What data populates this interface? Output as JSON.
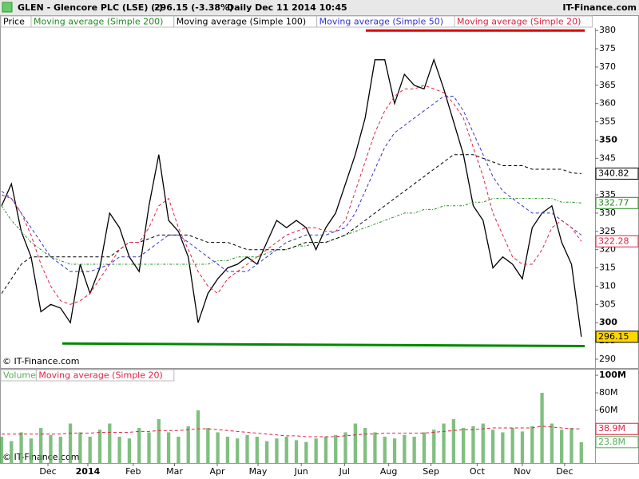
{
  "header": {
    "title": "GLEN - Glencore PLC (LSE) (-)",
    "change": "296.15 (-3.38%)",
    "period": "Daily  Dec 11 2014 10:45",
    "site": "IT-Finance.com"
  },
  "chart_data": [
    {
      "type": "line",
      "copyright": "© IT-Finance.com",
      "x": [
        0,
        1,
        2,
        3,
        4,
        5,
        6,
        7,
        8,
        9,
        10,
        11,
        12,
        13,
        14,
        15,
        16,
        17,
        18,
        19,
        20,
        21,
        22,
        23,
        24,
        25,
        26,
        27,
        28,
        29,
        30,
        31,
        32,
        33,
        34,
        35,
        36,
        37,
        38,
        39,
        40,
        41,
        42,
        43,
        44,
        45,
        46,
        47,
        48,
        49,
        50,
        51,
        52,
        53,
        54,
        55,
        56,
        57,
        58,
        59
      ],
      "xlim": [
        -0.16,
        60.4
      ],
      "ylim": [
        287.8,
        380.7
      ],
      "yticks": [
        290,
        295,
        300,
        305,
        310,
        315,
        320,
        325,
        330,
        335,
        340,
        345,
        350,
        355,
        360,
        365,
        370,
        375,
        380
      ],
      "series": [
        {
          "name": "Price",
          "color": "#000000",
          "dash": "none",
          "values": [
            332,
            338,
            325,
            318,
            303,
            305,
            304,
            300,
            316,
            308,
            315,
            330,
            326,
            318,
            314,
            332,
            346,
            328,
            325,
            318,
            300,
            308,
            312,
            315,
            316,
            318,
            316,
            322,
            328,
            326,
            328,
            326,
            320,
            326,
            330,
            338,
            346,
            356,
            372,
            372,
            360,
            368,
            365,
            364,
            372,
            364,
            355,
            346,
            332,
            328,
            315,
            318,
            316,
            312,
            326,
            330,
            332,
            322,
            316,
            296.15
          ]
        },
        {
          "name": "Moving average (Simple 200)",
          "color": "#228b22",
          "dash": "3 2 1 2",
          "values": [
            332,
            328,
            325,
            322,
            320,
            318,
            317,
            316,
            316,
            316,
            316,
            316,
            316,
            316,
            316,
            316,
            316,
            316,
            316,
            316,
            316,
            316,
            317,
            317,
            318,
            318,
            318,
            319,
            320,
            320,
            321,
            321,
            322,
            322,
            323,
            324,
            325,
            326,
            327,
            328,
            329,
            330,
            330,
            331,
            331,
            332,
            332,
            332,
            333,
            333,
            334,
            334,
            334,
            334,
            334,
            334,
            334,
            333,
            333,
            332.77
          ]
        },
        {
          "name": "Moving average (Simple 100)",
          "color": "#000000",
          "dash": "4 3",
          "values": [
            308,
            312,
            316,
            318,
            318,
            318,
            318,
            318,
            318,
            318,
            318,
            318,
            320,
            322,
            322,
            323,
            324,
            324,
            324,
            324,
            323,
            322,
            322,
            322,
            321,
            320,
            320,
            320,
            320,
            320,
            321,
            322,
            322,
            322,
            323,
            324,
            326,
            328,
            330,
            332,
            334,
            336,
            338,
            340,
            342,
            344,
            346,
            346,
            346,
            345,
            344,
            343,
            343,
            343,
            342,
            342,
            342,
            342,
            341,
            340.82
          ]
        },
        {
          "name": "Moving average (Simple 50)",
          "color": "#3333cc",
          "dash": "4 3",
          "values": [
            336,
            334,
            330,
            326,
            322,
            318,
            316,
            314,
            314,
            314,
            315,
            316,
            318,
            318,
            318,
            320,
            322,
            324,
            324,
            322,
            320,
            318,
            316,
            314,
            314,
            314,
            316,
            318,
            320,
            322,
            323,
            324,
            324,
            324,
            325,
            326,
            330,
            336,
            342,
            348,
            352,
            354,
            356,
            358,
            360,
            362,
            362,
            358,
            352,
            346,
            340,
            336,
            334,
            332,
            330,
            330,
            330,
            328,
            326,
            324
          ]
        },
        {
          "name": "Moving average (Simple 20)",
          "color": "#dd2244",
          "dash": "4 3",
          "values": [
            335,
            334,
            330,
            324,
            316,
            310,
            306,
            305,
            306,
            308,
            312,
            316,
            320,
            322,
            322,
            326,
            332,
            334,
            326,
            320,
            314,
            310,
            308,
            312,
            314,
            316,
            318,
            320,
            322,
            324,
            325,
            326,
            326,
            325,
            325,
            328,
            336,
            344,
            352,
            358,
            362,
            364,
            364,
            365,
            364,
            363,
            360,
            356,
            348,
            340,
            330,
            324,
            318,
            316,
            316,
            320,
            326,
            328,
            326,
            322.28
          ]
        }
      ],
      "lines": [
        {
          "color": "#dd0000",
          "from": [
            37.07,
            380
          ],
          "to": [
            59.35,
            380
          ]
        },
        {
          "color": "#008800",
          "from": [
            6.18,
            294.3
          ],
          "to": [
            59.35,
            293.6
          ]
        }
      ]
    },
    {
      "type": "bar",
      "copyright": "© IT-Finance.com",
      "x": [
        0,
        1,
        2,
        3,
        4,
        5,
        6,
        7,
        8,
        9,
        10,
        11,
        12,
        13,
        14,
        15,
        16,
        17,
        18,
        19,
        20,
        21,
        22,
        23,
        24,
        25,
        26,
        27,
        28,
        29,
        30,
        31,
        32,
        33,
        34,
        35,
        36,
        37,
        38,
        39,
        40,
        41,
        42,
        43,
        44,
        45,
        46,
        47,
        48,
        49,
        50,
        51,
        52,
        53,
        54,
        55,
        56,
        57,
        58,
        59
      ],
      "xlim": [
        -0.16,
        60.4
      ],
      "xticks": [
        {
          "value": 4.72,
          "label": "Dec"
        },
        {
          "value": 8.78,
          "label": "2014"
        },
        {
          "value": 13.4,
          "label": "Feb"
        },
        {
          "value": 17.6,
          "label": "Mar"
        },
        {
          "value": 21.95,
          "label": "Apr"
        },
        {
          "value": 26.1,
          "label": "May"
        },
        {
          "value": 30.5,
          "label": "Jun"
        },
        {
          "value": 34.9,
          "label": "Jul"
        },
        {
          "value": 39.4,
          "label": "Aug"
        },
        {
          "value": 43.7,
          "label": "Sep"
        },
        {
          "value": 48.4,
          "label": "Oct"
        },
        {
          "value": 53.0,
          "label": "Nov"
        },
        {
          "value": 57.3,
          "label": "Dec"
        }
      ],
      "ylim": [
        0,
        104.6
      ],
      "yticks": [
        {
          "value": 60,
          "label": "60M"
        },
        {
          "value": 80,
          "label": "80M"
        },
        {
          "value": 100,
          "label": "100M"
        }
      ],
      "series": [
        {
          "name": "Volume",
          "color": "#55aa55",
          "values": [
            30,
            25,
            35,
            28,
            40,
            32,
            30,
            45,
            35,
            30,
            38,
            45,
            30,
            28,
            40,
            35,
            50,
            35,
            30,
            42,
            60,
            40,
            35,
            30,
            28,
            32,
            30,
            25,
            28,
            30,
            26,
            24,
            28,
            30,
            32,
            35,
            45,
            40,
            35,
            30,
            28,
            32,
            30,
            35,
            38,
            45,
            50,
            40,
            42,
            45,
            38,
            35,
            40,
            36,
            42,
            80,
            45,
            38,
            40,
            23.8
          ],
          "value_labels": [
            null,
            null,
            null,
            null,
            null,
            null,
            null,
            null,
            null,
            null,
            null,
            null,
            null,
            null,
            null,
            null,
            null,
            null,
            null,
            null,
            null,
            null,
            null,
            null,
            null,
            null,
            null,
            null,
            null,
            null,
            null,
            null,
            null,
            null,
            null,
            null,
            null,
            null,
            null,
            null,
            null,
            null,
            null,
            null,
            null,
            null,
            null,
            null,
            null,
            null,
            null,
            null,
            null,
            null,
            null,
            null,
            null,
            null,
            null,
            "23.8M"
          ]
        },
        {
          "name": "Moving average (Simple 20)",
          "color": "#dd2244",
          "values": [
            33,
            33,
            33,
            33,
            33,
            33,
            33,
            34,
            34,
            34,
            35,
            35,
            35,
            35,
            36,
            36,
            37,
            37,
            37,
            38,
            39,
            39,
            38,
            37,
            36,
            35,
            34,
            33,
            32,
            31,
            31,
            30,
            30,
            30,
            30,
            31,
            32,
            33,
            33,
            34,
            34,
            34,
            34,
            34,
            35,
            36,
            37,
            38,
            38,
            39,
            40,
            40,
            40,
            40,
            40,
            42,
            41,
            40,
            39,
            38.9
          ],
          "value_labels": [
            null,
            null,
            null,
            null,
            null,
            null,
            null,
            null,
            null,
            null,
            null,
            null,
            null,
            null,
            null,
            null,
            null,
            null,
            null,
            null,
            null,
            null,
            null,
            null,
            null,
            null,
            null,
            null,
            null,
            null,
            null,
            null,
            null,
            null,
            null,
            null,
            null,
            null,
            null,
            null,
            null,
            null,
            null,
            null,
            null,
            null,
            null,
            null,
            null,
            null,
            null,
            null,
            null,
            null,
            null,
            null,
            null,
            null,
            null,
            "38.9M"
          ]
        }
      ]
    }
  ]
}
